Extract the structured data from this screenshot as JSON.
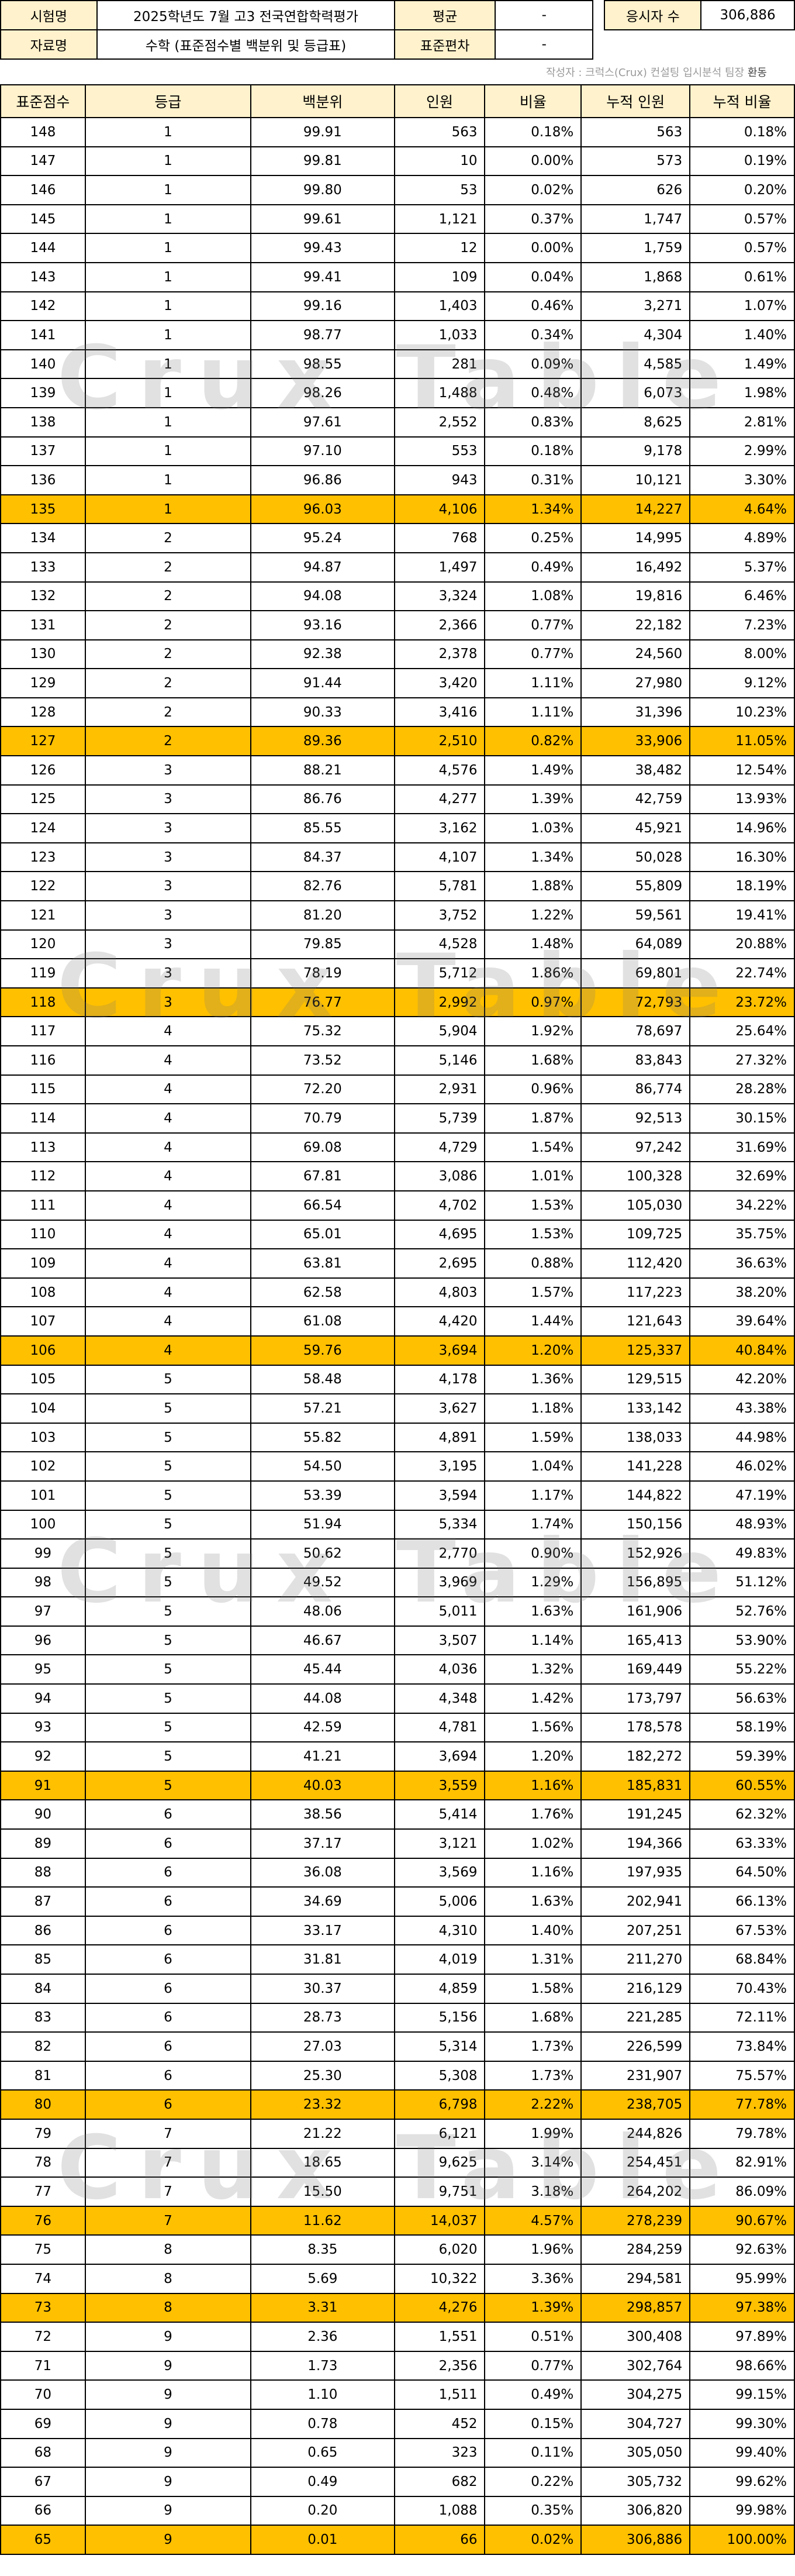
{
  "info": {
    "exam_label": "시험명",
    "exam_value": "2025학년도 7월 고3 전국연합학력평가",
    "data_label": "자료명",
    "data_value": "수학 (표준점수별 백분위 및 등급표)",
    "mean_label": "평균",
    "mean_value": "-",
    "sd_label": "표준편차",
    "sd_value": "-",
    "count_label": "응시자 수",
    "count_value": "306,886"
  },
  "credit": {
    "text": "작성자 : 크럭스(Crux) 컨설팅 입시분석 팀장 ",
    "name": "환동"
  },
  "watermark": "Crux Table",
  "columns": [
    "표준점수",
    "등급",
    "백분위",
    "인원",
    "비율",
    "누적 인원",
    "누적 비율"
  ],
  "rows": [
    [
      "148",
      "1",
      "99.91",
      "563",
      "0.18%",
      "563",
      "0.18%"
    ],
    [
      "147",
      "1",
      "99.81",
      "10",
      "0.00%",
      "573",
      "0.19%"
    ],
    [
      "146",
      "1",
      "99.80",
      "53",
      "0.02%",
      "626",
      "0.20%"
    ],
    [
      "145",
      "1",
      "99.61",
      "1,121",
      "0.37%",
      "1,747",
      "0.57%"
    ],
    [
      "144",
      "1",
      "99.43",
      "12",
      "0.00%",
      "1,759",
      "0.57%"
    ],
    [
      "143",
      "1",
      "99.41",
      "109",
      "0.04%",
      "1,868",
      "0.61%"
    ],
    [
      "142",
      "1",
      "99.16",
      "1,403",
      "0.46%",
      "3,271",
      "1.07%"
    ],
    [
      "141",
      "1",
      "98.77",
      "1,033",
      "0.34%",
      "4,304",
      "1.40%"
    ],
    [
      "140",
      "1",
      "98.55",
      "281",
      "0.09%",
      "4,585",
      "1.49%"
    ],
    [
      "139",
      "1",
      "98.26",
      "1,488",
      "0.48%",
      "6,073",
      "1.98%"
    ],
    [
      "138",
      "1",
      "97.61",
      "2,552",
      "0.83%",
      "8,625",
      "2.81%"
    ],
    [
      "137",
      "1",
      "97.10",
      "553",
      "0.18%",
      "9,178",
      "2.99%"
    ],
    [
      "136",
      "1",
      "96.86",
      "943",
      "0.31%",
      "10,121",
      "3.30%"
    ],
    [
      "135",
      "1",
      "96.03",
      "4,106",
      "1.34%",
      "14,227",
      "4.64%"
    ],
    [
      "134",
      "2",
      "95.24",
      "768",
      "0.25%",
      "14,995",
      "4.89%"
    ],
    [
      "133",
      "2",
      "94.87",
      "1,497",
      "0.49%",
      "16,492",
      "5.37%"
    ],
    [
      "132",
      "2",
      "94.08",
      "3,324",
      "1.08%",
      "19,816",
      "6.46%"
    ],
    [
      "131",
      "2",
      "93.16",
      "2,366",
      "0.77%",
      "22,182",
      "7.23%"
    ],
    [
      "130",
      "2",
      "92.38",
      "2,378",
      "0.77%",
      "24,560",
      "8.00%"
    ],
    [
      "129",
      "2",
      "91.44",
      "3,420",
      "1.11%",
      "27,980",
      "9.12%"
    ],
    [
      "128",
      "2",
      "90.33",
      "3,416",
      "1.11%",
      "31,396",
      "10.23%"
    ],
    [
      "127",
      "2",
      "89.36",
      "2,510",
      "0.82%",
      "33,906",
      "11.05%"
    ],
    [
      "126",
      "3",
      "88.21",
      "4,576",
      "1.49%",
      "38,482",
      "12.54%"
    ],
    [
      "125",
      "3",
      "86.76",
      "4,277",
      "1.39%",
      "42,759",
      "13.93%"
    ],
    [
      "124",
      "3",
      "85.55",
      "3,162",
      "1.03%",
      "45,921",
      "14.96%"
    ],
    [
      "123",
      "3",
      "84.37",
      "4,107",
      "1.34%",
      "50,028",
      "16.30%"
    ],
    [
      "122",
      "3",
      "82.76",
      "5,781",
      "1.88%",
      "55,809",
      "18.19%"
    ],
    [
      "121",
      "3",
      "81.20",
      "3,752",
      "1.22%",
      "59,561",
      "19.41%"
    ],
    [
      "120",
      "3",
      "79.85",
      "4,528",
      "1.48%",
      "64,089",
      "20.88%"
    ],
    [
      "119",
      "3",
      "78.19",
      "5,712",
      "1.86%",
      "69,801",
      "22.74%"
    ],
    [
      "118",
      "3",
      "76.77",
      "2,992",
      "0.97%",
      "72,793",
      "23.72%"
    ],
    [
      "117",
      "4",
      "75.32",
      "5,904",
      "1.92%",
      "78,697",
      "25.64%"
    ],
    [
      "116",
      "4",
      "73.52",
      "5,146",
      "1.68%",
      "83,843",
      "27.32%"
    ],
    [
      "115",
      "4",
      "72.20",
      "2,931",
      "0.96%",
      "86,774",
      "28.28%"
    ],
    [
      "114",
      "4",
      "70.79",
      "5,739",
      "1.87%",
      "92,513",
      "30.15%"
    ],
    [
      "113",
      "4",
      "69.08",
      "4,729",
      "1.54%",
      "97,242",
      "31.69%"
    ],
    [
      "112",
      "4",
      "67.81",
      "3,086",
      "1.01%",
      "100,328",
      "32.69%"
    ],
    [
      "111",
      "4",
      "66.54",
      "4,702",
      "1.53%",
      "105,030",
      "34.22%"
    ],
    [
      "110",
      "4",
      "65.01",
      "4,695",
      "1.53%",
      "109,725",
      "35.75%"
    ],
    [
      "109",
      "4",
      "63.81",
      "2,695",
      "0.88%",
      "112,420",
      "36.63%"
    ],
    [
      "108",
      "4",
      "62.58",
      "4,803",
      "1.57%",
      "117,223",
      "38.20%"
    ],
    [
      "107",
      "4",
      "61.08",
      "4,420",
      "1.44%",
      "121,643",
      "39.64%"
    ],
    [
      "106",
      "4",
      "59.76",
      "3,694",
      "1.20%",
      "125,337",
      "40.84%"
    ],
    [
      "105",
      "5",
      "58.48",
      "4,178",
      "1.36%",
      "129,515",
      "42.20%"
    ],
    [
      "104",
      "5",
      "57.21",
      "3,627",
      "1.18%",
      "133,142",
      "43.38%"
    ],
    [
      "103",
      "5",
      "55.82",
      "4,891",
      "1.59%",
      "138,033",
      "44.98%"
    ],
    [
      "102",
      "5",
      "54.50",
      "3,195",
      "1.04%",
      "141,228",
      "46.02%"
    ],
    [
      "101",
      "5",
      "53.39",
      "3,594",
      "1.17%",
      "144,822",
      "47.19%"
    ],
    [
      "100",
      "5",
      "51.94",
      "5,334",
      "1.74%",
      "150,156",
      "48.93%"
    ],
    [
      "99",
      "5",
      "50.62",
      "2,770",
      "0.90%",
      "152,926",
      "49.83%"
    ],
    [
      "98",
      "5",
      "49.52",
      "3,969",
      "1.29%",
      "156,895",
      "51.12%"
    ],
    [
      "97",
      "5",
      "48.06",
      "5,011",
      "1.63%",
      "161,906",
      "52.76%"
    ],
    [
      "96",
      "5",
      "46.67",
      "3,507",
      "1.14%",
      "165,413",
      "53.90%"
    ],
    [
      "95",
      "5",
      "45.44",
      "4,036",
      "1.32%",
      "169,449",
      "55.22%"
    ],
    [
      "94",
      "5",
      "44.08",
      "4,348",
      "1.42%",
      "173,797",
      "56.63%"
    ],
    [
      "93",
      "5",
      "42.59",
      "4,781",
      "1.56%",
      "178,578",
      "58.19%"
    ],
    [
      "92",
      "5",
      "41.21",
      "3,694",
      "1.20%",
      "182,272",
      "59.39%"
    ],
    [
      "91",
      "5",
      "40.03",
      "3,559",
      "1.16%",
      "185,831",
      "60.55%"
    ],
    [
      "90",
      "6",
      "38.56",
      "5,414",
      "1.76%",
      "191,245",
      "62.32%"
    ],
    [
      "89",
      "6",
      "37.17",
      "3,121",
      "1.02%",
      "194,366",
      "63.33%"
    ],
    [
      "88",
      "6",
      "36.08",
      "3,569",
      "1.16%",
      "197,935",
      "64.50%"
    ],
    [
      "87",
      "6",
      "34.69",
      "5,006",
      "1.63%",
      "202,941",
      "66.13%"
    ],
    [
      "86",
      "6",
      "33.17",
      "4,310",
      "1.40%",
      "207,251",
      "67.53%"
    ],
    [
      "85",
      "6",
      "31.81",
      "4,019",
      "1.31%",
      "211,270",
      "68.84%"
    ],
    [
      "84",
      "6",
      "30.37",
      "4,859",
      "1.58%",
      "216,129",
      "70.43%"
    ],
    [
      "83",
      "6",
      "28.73",
      "5,156",
      "1.68%",
      "221,285",
      "72.11%"
    ],
    [
      "82",
      "6",
      "27.03",
      "5,314",
      "1.73%",
      "226,599",
      "73.84%"
    ],
    [
      "81",
      "6",
      "25.30",
      "5,308",
      "1.73%",
      "231,907",
      "75.57%"
    ],
    [
      "80",
      "6",
      "23.32",
      "6,798",
      "2.22%",
      "238,705",
      "77.78%"
    ],
    [
      "79",
      "7",
      "21.22",
      "6,121",
      "1.99%",
      "244,826",
      "79.78%"
    ],
    [
      "78",
      "7",
      "18.65",
      "9,625",
      "3.14%",
      "254,451",
      "82.91%"
    ],
    [
      "77",
      "7",
      "15.50",
      "9,751",
      "3.18%",
      "264,202",
      "86.09%"
    ],
    [
      "76",
      "7",
      "11.62",
      "14,037",
      "4.57%",
      "278,239",
      "90.67%"
    ],
    [
      "75",
      "8",
      "8.35",
      "6,020",
      "1.96%",
      "284,259",
      "92.63%"
    ],
    [
      "74",
      "8",
      "5.69",
      "10,322",
      "3.36%",
      "294,581",
      "95.99%"
    ],
    [
      "73",
      "8",
      "3.31",
      "4,276",
      "1.39%",
      "298,857",
      "97.38%"
    ],
    [
      "72",
      "9",
      "2.36",
      "1,551",
      "0.51%",
      "300,408",
      "97.89%"
    ],
    [
      "71",
      "9",
      "1.73",
      "2,356",
      "0.77%",
      "302,764",
      "98.66%"
    ],
    [
      "70",
      "9",
      "1.10",
      "1,511",
      "0.49%",
      "304,275",
      "99.15%"
    ],
    [
      "69",
      "9",
      "0.78",
      "452",
      "0.15%",
      "304,727",
      "99.30%"
    ],
    [
      "68",
      "9",
      "0.65",
      "323",
      "0.11%",
      "305,050",
      "99.40%"
    ],
    [
      "67",
      "9",
      "0.49",
      "682",
      "0.22%",
      "305,732",
      "99.62%"
    ],
    [
      "66",
      "9",
      "0.20",
      "1,088",
      "0.35%",
      "306,820",
      "99.98%"
    ],
    [
      "65",
      "9",
      "0.01",
      "66",
      "0.02%",
      "306,886",
      "100.00%"
    ]
  ],
  "highlighted_scores": [
    "135",
    "127",
    "118",
    "106",
    "91",
    "80",
    "76",
    "73",
    "65"
  ],
  "colors": {
    "header_bg": "#fff2cc",
    "highlight_bg": "#ffc000",
    "border": "#000000"
  }
}
